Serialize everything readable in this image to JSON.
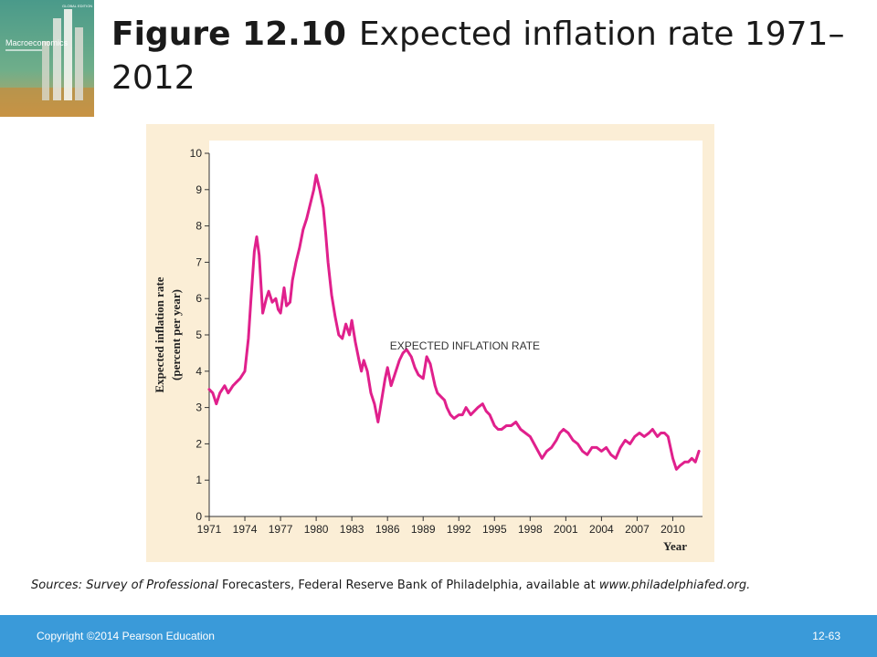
{
  "header": {
    "figure_number": "Figure 12.10",
    "title": "Expected inflation rate 1971–2012",
    "book_cover": {
      "title_text": "Macroeconomics",
      "edition_text": "GLOBAL EDITION"
    }
  },
  "sources": {
    "prefix": "Sources: ",
    "italic_part": "Survey of Professional",
    "rest": " Forecasters, Federal Reserve Bank of Philadelphia, available at ",
    "url": "www.philadelphiafed.org."
  },
  "footer": {
    "copyright": "Copyright ©2014 Pearson Education",
    "page": "12-63"
  },
  "colors": {
    "line": "#e0208c",
    "chart_background": "#fbeed6",
    "plot_background": "#ffffff",
    "footer_bar": "#3a9ad9"
  },
  "chart_data": {
    "type": "line",
    "title": "",
    "xlabel": "Year",
    "ylabel": "Expected inflation rate (percent per year)",
    "ylabel_lines": [
      "Expected inflation rate",
      "(percent per year)"
    ],
    "xlim": [
      1971,
      2012.5
    ],
    "ylim": [
      0,
      10
    ],
    "x_ticks": [
      1971,
      1974,
      1977,
      1980,
      1983,
      1986,
      1989,
      1992,
      1995,
      1998,
      2001,
      2004,
      2007,
      2010
    ],
    "y_ticks": [
      0,
      1,
      2,
      3,
      4,
      5,
      6,
      7,
      8,
      9,
      10
    ],
    "grid": false,
    "legend": "none",
    "series": [
      {
        "name": "EXPECTED INFLATION RATE",
        "x": [
          1971.0,
          1971.3,
          1971.6,
          1971.9,
          1972.3,
          1972.6,
          1973.0,
          1973.3,
          1973.6,
          1974.0,
          1974.3,
          1974.5,
          1974.8,
          1975.0,
          1975.2,
          1975.5,
          1975.8,
          1976.0,
          1976.3,
          1976.6,
          1976.8,
          1977.0,
          1977.3,
          1977.5,
          1977.8,
          1978.0,
          1978.3,
          1978.6,
          1978.9,
          1979.2,
          1979.5,
          1979.8,
          1980.0,
          1980.3,
          1980.6,
          1980.8,
          1981.0,
          1981.3,
          1981.6,
          1981.9,
          1982.2,
          1982.5,
          1982.8,
          1983.0,
          1983.3,
          1983.6,
          1983.8,
          1984.0,
          1984.3,
          1984.6,
          1984.9,
          1985.2,
          1985.5,
          1985.8,
          1986.0,
          1986.3,
          1986.6,
          1987.0,
          1987.3,
          1987.6,
          1988.0,
          1988.3,
          1988.6,
          1989.0,
          1989.3,
          1989.6,
          1990.0,
          1990.2,
          1990.5,
          1990.8,
          1991.0,
          1991.3,
          1991.6,
          1992.0,
          1992.3,
          1992.6,
          1993.0,
          1993.3,
          1993.6,
          1994.0,
          1994.3,
          1994.6,
          1995.0,
          1995.3,
          1995.6,
          1996.0,
          1996.4,
          1996.8,
          1997.2,
          1997.6,
          1998.0,
          1998.5,
          1999.0,
          1999.4,
          1999.8,
          2000.2,
          2000.5,
          2000.8,
          2001.2,
          2001.6,
          2002.0,
          2002.4,
          2002.8,
          2003.2,
          2003.6,
          2004.0,
          2004.4,
          2004.8,
          2005.2,
          2005.6,
          2006.0,
          2006.4,
          2006.8,
          2007.2,
          2007.6,
          2008.0,
          2008.3,
          2008.7,
          2009.0,
          2009.3,
          2009.6,
          2010.0,
          2010.3,
          2010.6,
          2011.0,
          2011.3,
          2011.6,
          2011.9,
          2012.2
        ],
        "y": [
          3.5,
          3.4,
          3.1,
          3.4,
          3.6,
          3.4,
          3.6,
          3.7,
          3.8,
          4.0,
          4.9,
          5.9,
          7.3,
          7.7,
          7.2,
          5.6,
          6.0,
          6.2,
          5.9,
          6.0,
          5.7,
          5.6,
          6.3,
          5.8,
          5.9,
          6.5,
          7.0,
          7.4,
          7.9,
          8.2,
          8.6,
          9.0,
          9.4,
          9.0,
          8.5,
          7.8,
          7.0,
          6.1,
          5.5,
          5.0,
          4.9,
          5.3,
          5.0,
          5.4,
          4.8,
          4.3,
          4.0,
          4.3,
          4.0,
          3.4,
          3.1,
          2.6,
          3.2,
          3.8,
          4.1,
          3.6,
          3.9,
          4.3,
          4.5,
          4.6,
          4.4,
          4.1,
          3.9,
          3.8,
          4.4,
          4.2,
          3.6,
          3.4,
          3.3,
          3.2,
          3.0,
          2.8,
          2.7,
          2.8,
          2.8,
          3.0,
          2.8,
          2.9,
          3.0,
          3.1,
          2.9,
          2.8,
          2.5,
          2.4,
          2.4,
          2.5,
          2.5,
          2.6,
          2.4,
          2.3,
          2.2,
          1.9,
          1.6,
          1.8,
          1.9,
          2.1,
          2.3,
          2.4,
          2.3,
          2.1,
          2.0,
          1.8,
          1.7,
          1.9,
          1.9,
          1.8,
          1.9,
          1.7,
          1.6,
          1.9,
          2.1,
          2.0,
          2.2,
          2.3,
          2.2,
          2.3,
          2.4,
          2.2,
          2.3,
          2.3,
          2.2,
          1.6,
          1.3,
          1.4,
          1.5,
          1.5,
          1.6,
          1.5,
          1.8
        ]
      }
    ],
    "annotations": [
      {
        "text": "EXPECTED INFLATION RATE",
        "x": 1986.2,
        "y": 4.6
      }
    ]
  }
}
